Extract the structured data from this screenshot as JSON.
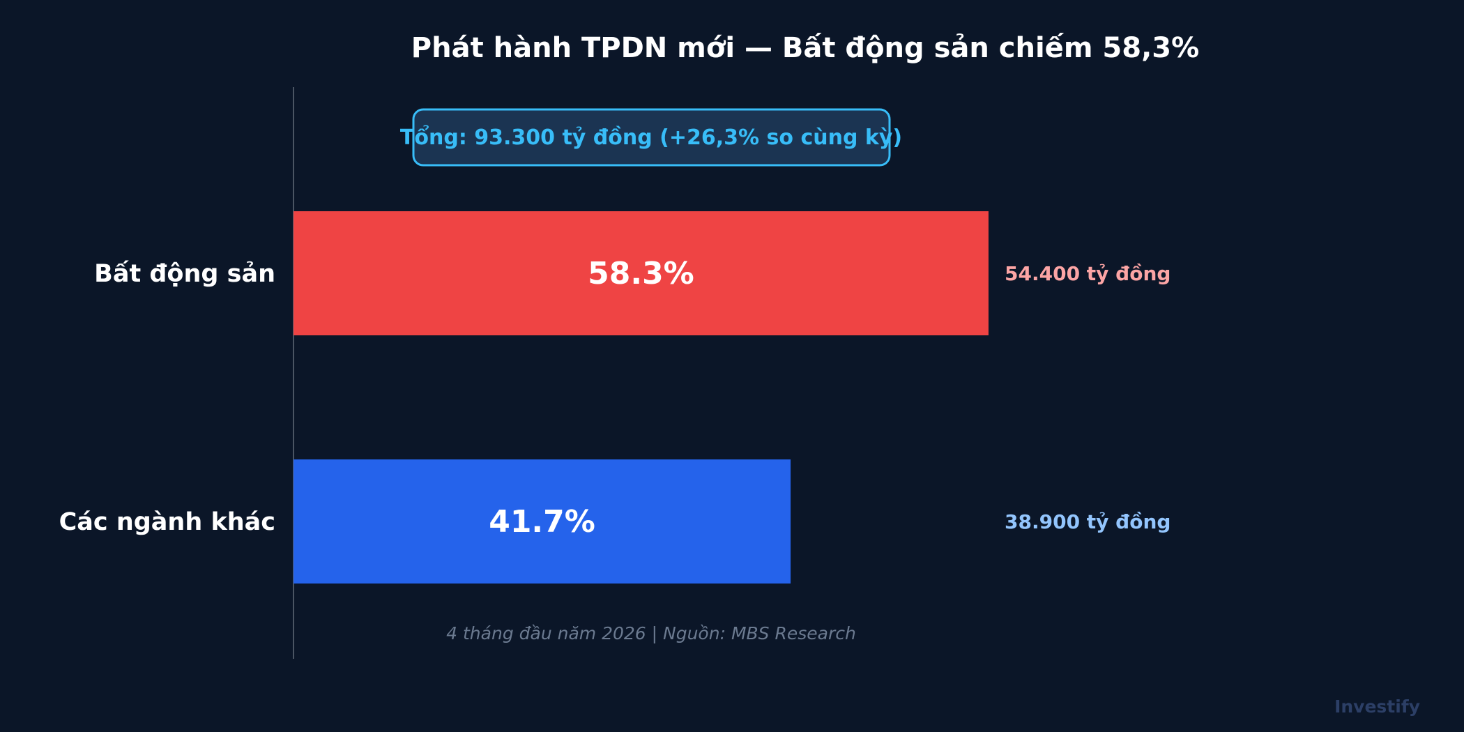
{
  "chart_data": {
    "type": "bar",
    "orientation": "horizontal",
    "title": "Phát hành TPDN mới — Bất động sản chiếm 58,3%",
    "total_label": "Tổng: 93.300 tỷ đồng  (+26,3% so cùng kỳ)",
    "categories": [
      "Bất động sản",
      "Các ngành khác"
    ],
    "values": [
      58.3,
      41.7
    ],
    "value_labels": [
      "58.3%",
      "41.7%"
    ],
    "amount_labels": [
      "54.400 tỷ đồng",
      "38.900 tỷ đồng"
    ],
    "bar_colors": [
      "#ef4444",
      "#2563eb"
    ],
    "amount_colors": [
      "#fca5a5",
      "#93c5fd"
    ],
    "xlim": [
      0,
      100
    ],
    "grid": false,
    "legend": "none",
    "footnote": "4 tháng đầu năm 2026  |  Nguồn: MBS Research"
  },
  "brand": "Investify",
  "colors": {
    "background": "#0b1628",
    "accent": "#38bdf8",
    "axis": "#4b5563"
  }
}
